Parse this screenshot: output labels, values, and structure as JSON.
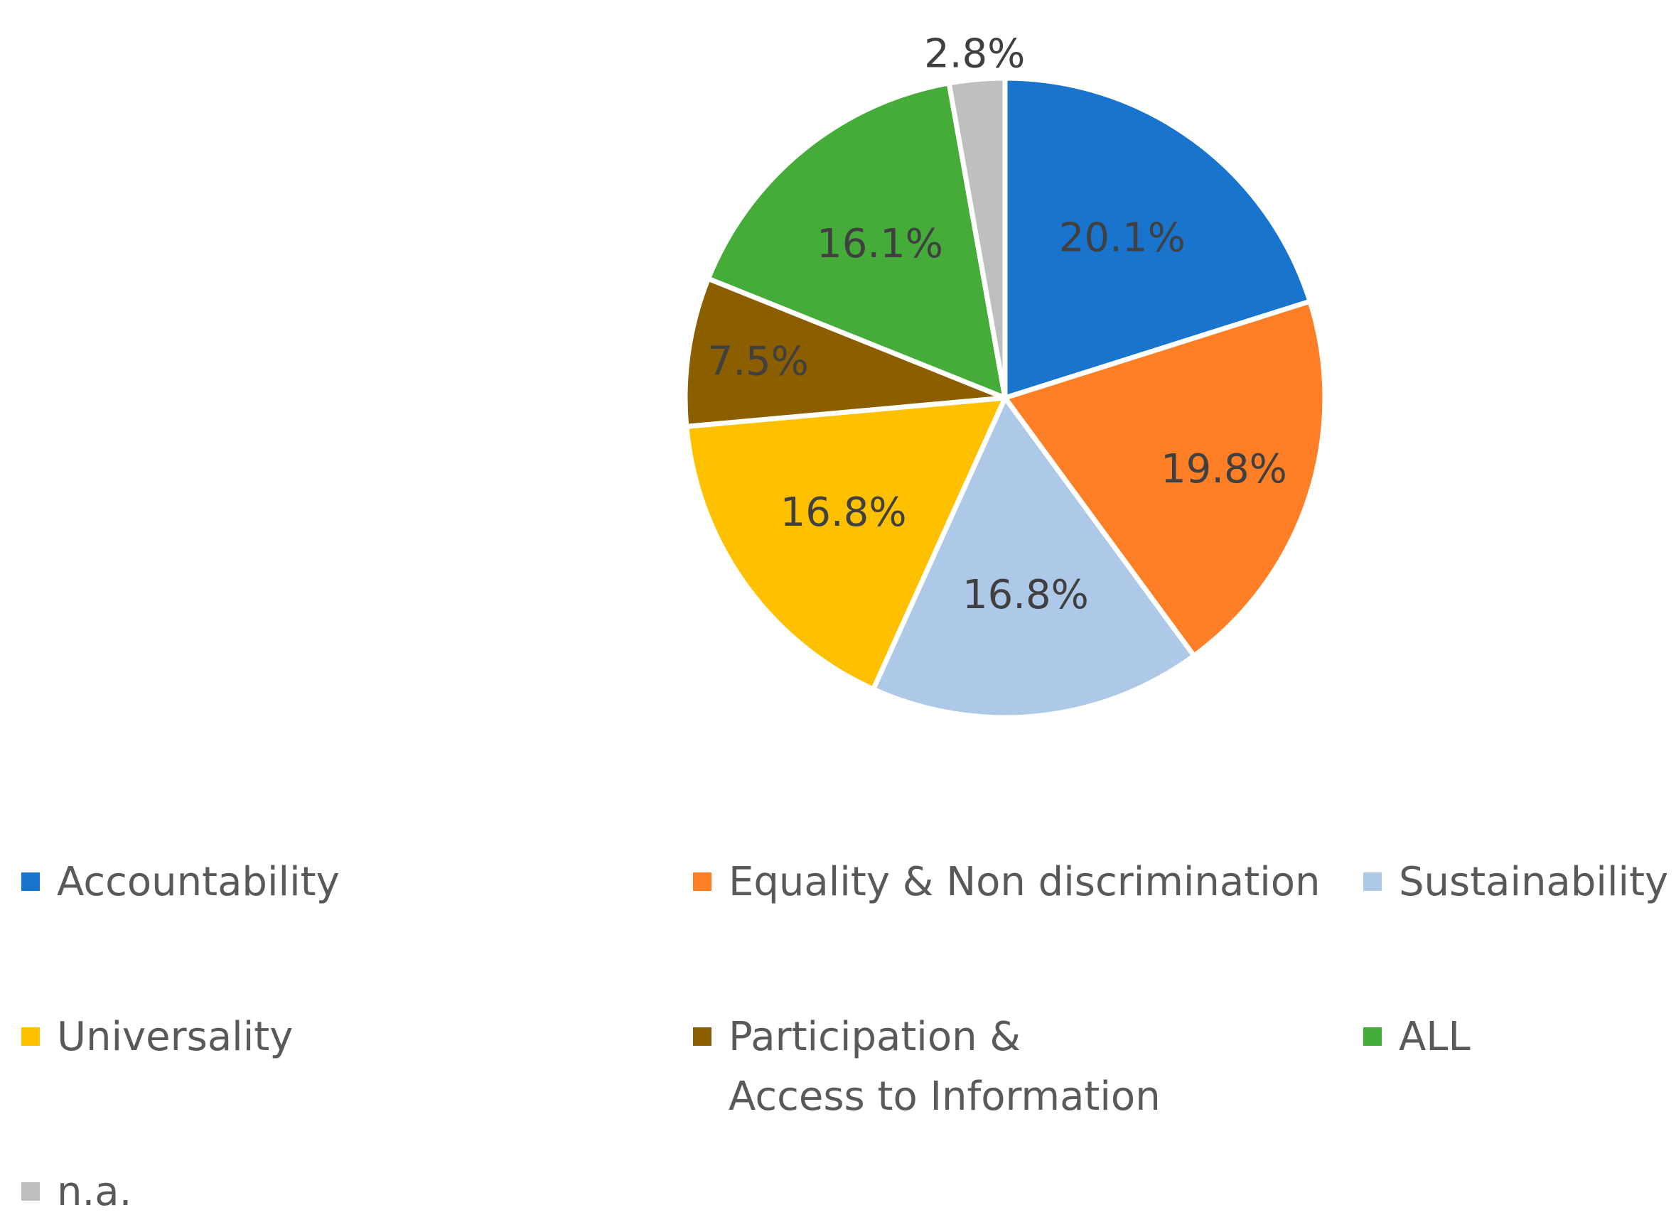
{
  "chart_data": {
    "type": "pie",
    "title": "",
    "categories": [
      "Accountability",
      "Equality & Non discrimination",
      "Sustainability",
      "Universality",
      "Participation &\nAccess to Information",
      "ALL",
      "n.a."
    ],
    "values": [
      20.1,
      19.8,
      16.8,
      16.8,
      7.5,
      16.1,
      2.8
    ],
    "labels": [
      "20.1%",
      "19.8%",
      "16.8%",
      "16.8%",
      "7.5%",
      "16.1%",
      "2.8%"
    ],
    "colors": [
      "#1874CD",
      "#FF7F27",
      "#AEC8E8",
      "#FFC000",
      "#8B5E00",
      "#45AC3A",
      "#BFBFBF"
    ],
    "start": "12 o'clock",
    "direction": "clockwise",
    "legend_position": "bottom"
  },
  "legend": {
    "items": [
      {
        "label": "Accountability",
        "color": "#1874CD"
      },
      {
        "label": "Equality & Non discrimination",
        "color": "#FF7F27"
      },
      {
        "label": "Sustainability",
        "color": "#AEC8E8"
      },
      {
        "label": "Universality",
        "color": "#FFC000"
      },
      {
        "label": "Participation &\nAccess to Information",
        "color": "#8B5E00"
      },
      {
        "label": "ALL",
        "color": "#45AC3A"
      },
      {
        "label": "n.a.",
        "color": "#BFBFBF"
      }
    ]
  }
}
